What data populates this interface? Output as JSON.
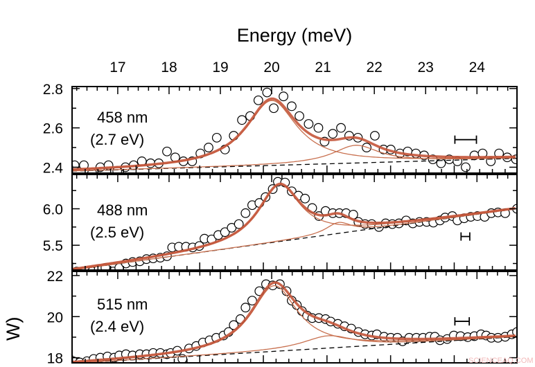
{
  "chart_data": {
    "type": "scatter",
    "title": "",
    "xlabel": "Energy (meV)",
    "ylabel_visible": "W)",
    "x_axis_position": "top",
    "xlim": [
      16.11,
      24.78
    ],
    "xticks": [
      17,
      18,
      19,
      20,
      21,
      22,
      23,
      24
    ],
    "xtick_labels": [
      "17",
      "18",
      "19",
      "20",
      "21",
      "22",
      "23",
      "24"
    ],
    "secondary_ticks_unit": "cm-1",
    "grid": false,
    "legend": "none",
    "watermark": "SCIENCEAQ.COM",
    "colors": {
      "data_marker_edge": "#000000",
      "fit_total": "#c4553a",
      "fit_component": "#c8704f",
      "background_line": "#000000"
    },
    "panels": [
      {
        "label_line1": "458 nm",
        "label_line2": "(2.7 eV)",
        "ylim": [
          2.37,
          2.81
        ],
        "yticks": [
          2.4,
          2.6,
          2.8
        ],
        "ytick_labels": [
          "2.4",
          "2.6",
          "2.8"
        ],
        "yminor_step": 0.1,
        "resolution_bar": {
          "x_start": 23.57,
          "x_end": 23.99,
          "y": 2.54
        },
        "fit": {
          "background": {
            "x": [
              16.11,
              24.78
            ],
            "y": [
              2.38,
              2.445
            ]
          },
          "peaks": [
            {
              "center": 20.0,
              "hwhm": 0.6,
              "amplitude": 0.33
            },
            {
              "center": 21.64,
              "hwhm": 0.55,
              "amplitude": 0.09
            }
          ]
        },
        "points": [
          [
            16.16,
            2.41
          ],
          [
            16.34,
            2.41
          ],
          [
            16.5,
            2.37
          ],
          [
            16.66,
            2.4
          ],
          [
            16.82,
            2.41
          ],
          [
            16.99,
            2.38
          ],
          [
            17.15,
            2.4
          ],
          [
            17.31,
            2.41
          ],
          [
            17.47,
            2.43
          ],
          [
            17.64,
            2.42
          ],
          [
            17.8,
            2.42
          ],
          [
            17.96,
            2.48
          ],
          [
            18.12,
            2.45
          ],
          [
            18.28,
            2.43
          ],
          [
            18.45,
            2.43
          ],
          [
            18.61,
            2.47
          ],
          [
            18.77,
            2.5
          ],
          [
            18.93,
            2.55
          ],
          [
            19.09,
            2.49
          ],
          [
            19.26,
            2.56
          ],
          [
            19.42,
            2.64
          ],
          [
            19.58,
            2.66
          ],
          [
            19.74,
            2.74
          ],
          [
            19.91,
            2.78
          ],
          [
            20.04,
            2.7
          ],
          [
            20.23,
            2.76
          ],
          [
            20.39,
            2.71
          ],
          [
            20.54,
            2.66
          ],
          [
            20.72,
            2.62
          ],
          [
            20.91,
            2.6
          ],
          [
            21.03,
            2.53
          ],
          [
            21.19,
            2.57
          ],
          [
            21.35,
            2.6
          ],
          [
            21.51,
            2.56
          ],
          [
            21.68,
            2.55
          ],
          [
            21.85,
            2.5
          ],
          [
            22.01,
            2.56
          ],
          [
            22.18,
            2.49
          ],
          [
            22.32,
            2.49
          ],
          [
            22.5,
            2.47
          ],
          [
            22.65,
            2.48
          ],
          [
            22.81,
            2.47
          ],
          [
            22.97,
            2.46
          ],
          [
            23.14,
            2.44
          ],
          [
            23.3,
            2.42
          ],
          [
            23.46,
            2.44
          ],
          [
            23.62,
            2.43
          ],
          [
            23.78,
            2.4
          ],
          [
            23.95,
            2.46
          ],
          [
            24.11,
            2.47
          ],
          [
            24.27,
            2.43
          ],
          [
            24.43,
            2.47
          ],
          [
            24.59,
            2.45
          ],
          [
            24.76,
            2.44
          ]
        ]
      },
      {
        "label_line1": "488 nm",
        "label_line2": "(2.5 eV)",
        "ylim": [
          5.16,
          6.47
        ],
        "yticks": [
          5.5,
          6.0
        ],
        "ytick_labels": [
          "5.5",
          "6.0"
        ],
        "yminor_step": 0.25,
        "resolution_bar": {
          "x_start": 23.69,
          "x_end": 23.86,
          "y": 5.62
        },
        "fit": {
          "background": {
            "x": [
              16.11,
              24.78
            ],
            "y": [
              5.16,
              6.0
            ]
          },
          "peaks": [
            {
              "center": 20.15,
              "hwhm": 0.5,
              "amplitude": 0.78
            },
            {
              "center": 21.3,
              "hwhm": 0.3,
              "amplitude": 0.15
            }
          ]
        },
        "points": [
          [
            16.2,
            5.14
          ],
          [
            16.5,
            5.14
          ],
          [
            16.63,
            5.17
          ],
          [
            16.76,
            5.19
          ],
          [
            16.91,
            5.14
          ],
          [
            17.03,
            5.19
          ],
          [
            17.16,
            5.25
          ],
          [
            17.29,
            5.27
          ],
          [
            17.43,
            5.28
          ],
          [
            17.56,
            5.31
          ],
          [
            17.69,
            5.32
          ],
          [
            17.83,
            5.33
          ],
          [
            17.96,
            5.35
          ],
          [
            18.06,
            5.47
          ],
          [
            18.19,
            5.48
          ],
          [
            18.33,
            5.48
          ],
          [
            18.46,
            5.47
          ],
          [
            18.59,
            5.49
          ],
          [
            18.69,
            5.59
          ],
          [
            18.83,
            5.58
          ],
          [
            18.96,
            5.64
          ],
          [
            19.09,
            5.68
          ],
          [
            19.22,
            5.74
          ],
          [
            19.36,
            5.79
          ],
          [
            19.49,
            5.94
          ],
          [
            19.62,
            6.05
          ],
          [
            19.76,
            6.08
          ],
          [
            19.88,
            6.16
          ],
          [
            20.02,
            6.27
          ],
          [
            20.12,
            6.37
          ],
          [
            20.26,
            6.36
          ],
          [
            20.39,
            6.24
          ],
          [
            20.52,
            6.18
          ],
          [
            20.65,
            6.14
          ],
          [
            20.79,
            6.01
          ],
          [
            20.92,
            5.9
          ],
          [
            21.05,
            5.97
          ],
          [
            21.19,
            5.94
          ],
          [
            21.32,
            5.94
          ],
          [
            21.45,
            5.94
          ],
          [
            21.59,
            5.92
          ],
          [
            21.69,
            5.82
          ],
          [
            21.82,
            5.79
          ],
          [
            21.95,
            5.79
          ],
          [
            22.09,
            5.75
          ],
          [
            22.22,
            5.8
          ],
          [
            22.35,
            5.79
          ],
          [
            22.48,
            5.8
          ],
          [
            22.62,
            5.84
          ],
          [
            22.75,
            5.8
          ],
          [
            22.88,
            5.82
          ],
          [
            23.02,
            5.82
          ],
          [
            23.15,
            5.81
          ],
          [
            23.28,
            5.84
          ],
          [
            23.38,
            5.88
          ],
          [
            23.52,
            5.9
          ],
          [
            23.62,
            5.84
          ],
          [
            23.75,
            5.87
          ],
          [
            23.88,
            5.89
          ],
          [
            24.01,
            5.9
          ],
          [
            24.15,
            5.89
          ],
          [
            24.28,
            5.94
          ],
          [
            24.41,
            5.95
          ],
          [
            24.55,
            5.94
          ],
          [
            24.78,
            6.0
          ]
        ]
      },
      {
        "label_line1": "515 nm",
        "label_line2": "(2.4 eV)",
        "ylim": [
          17.75,
          22.2
        ],
        "yticks": [
          18,
          20,
          22
        ],
        "ytick_labels": [
          "18",
          "20",
          "22"
        ],
        "yminor_step": 1,
        "resolution_bar": {
          "x_start": 23.57,
          "x_end": 23.85,
          "y": 19.77
        },
        "fit": {
          "background": {
            "x": [
              16.11,
              24.78
            ],
            "y": [
              17.72,
              19.02
            ]
          },
          "peaks": [
            {
              "center": 20.05,
              "hwhm": 0.55,
              "amplitude": 3.2
            },
            {
              "center": 21.1,
              "hwhm": 0.6,
              "amplitude": 0.6
            }
          ]
        },
        "points": [
          [
            16.13,
            17.83
          ],
          [
            16.26,
            17.77
          ],
          [
            16.4,
            17.83
          ],
          [
            16.53,
            17.94
          ],
          [
            16.66,
            18.0
          ],
          [
            16.8,
            18.06
          ],
          [
            16.93,
            18.0
          ],
          [
            17.03,
            18.11
          ],
          [
            17.16,
            18.17
          ],
          [
            17.29,
            18.11
          ],
          [
            17.43,
            18.17
          ],
          [
            17.56,
            18.17
          ],
          [
            17.69,
            18.23
          ],
          [
            17.83,
            18.23
          ],
          [
            17.96,
            18.17
          ],
          [
            18.03,
            18.23
          ],
          [
            18.16,
            18.34
          ],
          [
            18.26,
            17.94
          ],
          [
            18.39,
            18.45
          ],
          [
            18.53,
            18.57
          ],
          [
            18.66,
            18.74
          ],
          [
            18.79,
            18.85
          ],
          [
            18.92,
            18.97
          ],
          [
            19.06,
            19.08
          ],
          [
            19.16,
            19.25
          ],
          [
            19.26,
            19.59
          ],
          [
            19.39,
            19.88
          ],
          [
            19.49,
            20.44
          ],
          [
            19.62,
            20.78
          ],
          [
            19.76,
            21.24
          ],
          [
            19.89,
            21.58
          ],
          [
            20.02,
            21.52
          ],
          [
            20.16,
            21.58
          ],
          [
            20.29,
            21.24
          ],
          [
            20.39,
            20.78
          ],
          [
            20.49,
            20.56
          ],
          [
            20.59,
            20.27
          ],
          [
            20.69,
            20.05
          ],
          [
            20.79,
            19.93
          ],
          [
            20.92,
            19.93
          ],
          [
            21.05,
            19.88
          ],
          [
            21.15,
            19.76
          ],
          [
            21.29,
            19.65
          ],
          [
            21.42,
            19.53
          ],
          [
            21.55,
            19.42
          ],
          [
            21.69,
            19.25
          ],
          [
            21.82,
            19.14
          ],
          [
            21.95,
            19.08
          ],
          [
            22.05,
            19.14
          ],
          [
            22.19,
            19.02
          ],
          [
            22.32,
            18.97
          ],
          [
            22.45,
            18.97
          ],
          [
            22.55,
            18.8
          ],
          [
            22.68,
            18.97
          ],
          [
            22.82,
            18.97
          ],
          [
            22.95,
            18.97
          ],
          [
            23.08,
            19.02
          ],
          [
            23.18,
            19.02
          ],
          [
            23.28,
            18.85
          ],
          [
            23.42,
            18.91
          ],
          [
            23.55,
            19.08
          ],
          [
            23.68,
            19.05
          ],
          [
            23.82,
            19.0
          ],
          [
            23.95,
            19.05
          ],
          [
            24.08,
            19.14
          ],
          [
            24.18,
            19.08
          ],
          [
            24.28,
            18.97
          ],
          [
            24.41,
            18.97
          ],
          [
            24.55,
            19.02
          ],
          [
            24.68,
            19.14
          ],
          [
            24.78,
            19.25
          ]
        ]
      }
    ]
  }
}
